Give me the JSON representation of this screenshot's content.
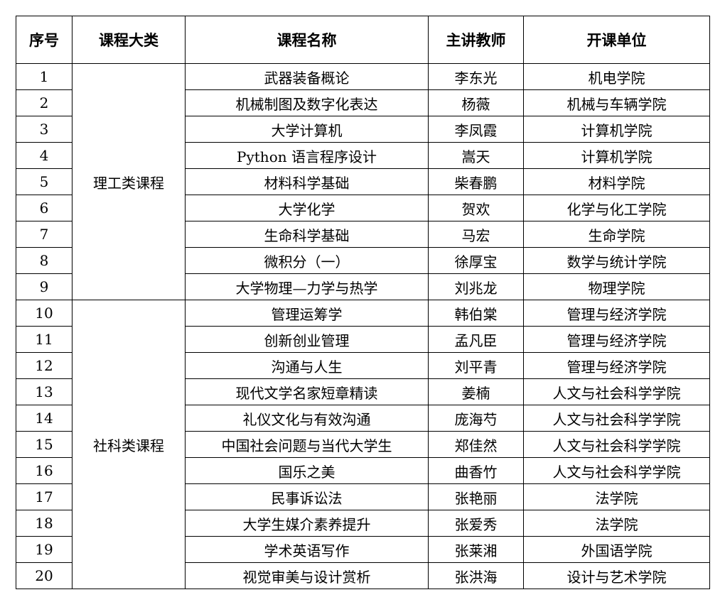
{
  "headers": [
    "序号",
    "课程大类",
    "课程名称",
    "主讲教师",
    "开课单位"
  ],
  "groups": [
    {
      "category": "理工类课程",
      "rows": [
        [
          "1",
          "武器装备概论",
          "李东光",
          "机电学院"
        ],
        [
          "2",
          "机械制图及数字化表达",
          "杨薇",
          "机械与车辆学院"
        ],
        [
          "3",
          "大学计算机",
          "李凤霞",
          "计算机学院"
        ],
        [
          "4",
          "Python 语言程序设计",
          "嵩天",
          "计算机学院"
        ],
        [
          "5",
          "材料科学基础",
          "柴春鹏",
          "材料学院"
        ],
        [
          "6",
          "大学化学",
          "贺欢",
          "化学与化工学院"
        ],
        [
          "7",
          "生命科学基础",
          "马宏",
          "生命学院"
        ],
        [
          "8",
          "微积分（一）",
          "徐厚宝",
          "数学与统计学院"
        ],
        [
          "9",
          "大学物理—力学与热学",
          "刘兆龙",
          "物理学院"
        ]
      ]
    },
    {
      "category": "社科类课程",
      "rows": [
        [
          "10",
          "管理运筹学",
          "韩伯棠",
          "管理与经济学院"
        ],
        [
          "11",
          "创新创业管理",
          "孟凡臣",
          "管理与经济学院"
        ],
        [
          "12",
          "沟通与人生",
          "刘平青",
          "管理与经济学院"
        ],
        [
          "13",
          "现代文学名家短章精读",
          "姜楠",
          "人文与社会科学学院"
        ],
        [
          "14",
          "礼仪文化与有效沟通",
          "庞海芍",
          "人文与社会科学学院"
        ],
        [
          "15",
          "中国社会问题与当代大学生",
          "郑佳然",
          "人文与社会科学学院"
        ],
        [
          "16",
          "国乐之美",
          "曲香竹",
          "人文与社会科学学院"
        ],
        [
          "17",
          "民事诉讼法",
          "张艳丽",
          "法学院"
        ],
        [
          "18",
          "大学生媒介素养提升",
          "张爱秀",
          "法学院"
        ],
        [
          "19",
          "学术英语写作",
          "张莱湘",
          "外国语学院"
        ],
        [
          "20",
          "视觉审美与设计赏析",
          "张洪海",
          "设计与艺术学院"
        ]
      ]
    }
  ]
}
